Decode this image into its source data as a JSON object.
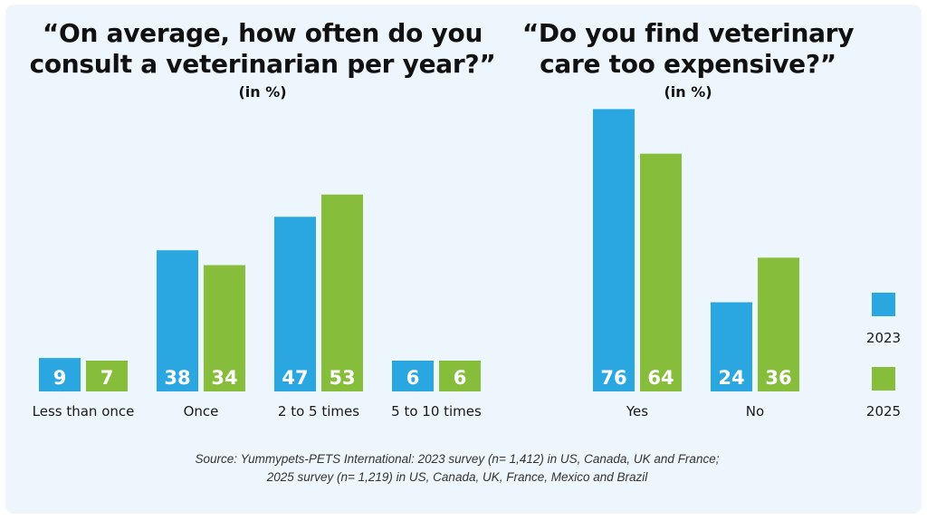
{
  "colors": {
    "y2023": "#2aa7e1",
    "y2025": "#86bd3b",
    "background": "#eef6fd"
  },
  "legend": [
    "2023",
    "2025"
  ],
  "source": {
    "line1": "Source: Yummypets-PETS International: 2023 survey (n= 1,412) in US, Canada, UK and France;",
    "line2": "2025 survey (n= 1,219) in US, Canada, UK, France, Mexico and Brazil"
  },
  "chart_data": [
    {
      "type": "bar",
      "title": "“On average, how often do you consult a veterinarian per year?”",
      "subtitle": "(in %)",
      "categories": [
        "Less than once",
        "Once",
        "2 to 5 times",
        "5 to 10 times"
      ],
      "series": [
        {
          "name": "2023",
          "values": [
            9,
            38,
            47,
            6
          ]
        },
        {
          "name": "2025",
          "values": [
            7,
            34,
            53,
            6
          ]
        }
      ]
    },
    {
      "type": "bar",
      "title": "“Do you find veterinary care too expensive?”",
      "subtitle": "(in %)",
      "categories": [
        "Yes",
        "No"
      ],
      "series": [
        {
          "name": "2023",
          "values": [
            76,
            24
          ]
        },
        {
          "name": "2025",
          "values": [
            64,
            36
          ]
        }
      ]
    }
  ]
}
